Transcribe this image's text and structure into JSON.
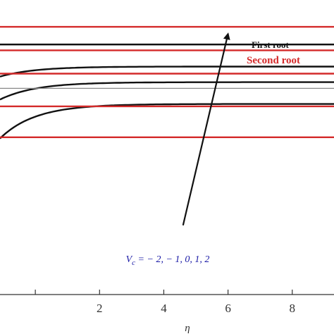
{
  "chart_data": {
    "type": "line",
    "xlabel": "η",
    "ylabel": "",
    "title": "",
    "xlim": [
      -1.1,
      9.3
    ],
    "ylim": [
      0,
      1
    ],
    "x_ticks": [
      2,
      4,
      6,
      8
    ],
    "grid": false,
    "legend_position": "top-right",
    "legend": [
      {
        "label": "First root",
        "color": "#111111"
      },
      {
        "label": "Second root",
        "color": "#d42a2a"
      }
    ],
    "annotation": {
      "text": "V_c = − 2, − 1, 0, 1, 2",
      "sub_main": "V",
      "sub_index": "c",
      "sub_rest": " = − 2, − 1, 0, 1, 2",
      "arrow_from": [
        4.6,
        0.235
      ],
      "arrow_to": [
        6.0,
        0.885
      ]
    },
    "series": [
      {
        "root": "First root",
        "color": "#111111",
        "profile": "flat",
        "y_end": 0.849
      },
      {
        "root": "First root",
        "color": "#111111",
        "profile": "rise",
        "y_start": 0.74,
        "y_end": 0.774
      },
      {
        "root": "First root",
        "color": "#111111",
        "profile": "rise",
        "y_start": 0.662,
        "y_end": 0.721
      },
      {
        "root": "First root",
        "color": "#111111",
        "profile": "rise",
        "y_start": 0.53,
        "y_end": 0.647
      },
      {
        "root": "Second root",
        "color": "#d42a2a",
        "profile": "flat",
        "y_end": 0.909
      },
      {
        "root": "Second root",
        "color": "#d42a2a",
        "profile": "flat",
        "y_end": 0.829
      },
      {
        "root": "Second root",
        "color": "#d42a2a",
        "profile": "flat",
        "y_end": 0.75
      },
      {
        "root": "Second root",
        "color": "#d42a2a",
        "profile": "flat",
        "y_end": 0.639
      },
      {
        "root": "Second root",
        "color": "#d42a2a",
        "profile": "flat",
        "y_end": 0.534
      },
      {
        "root": "",
        "color": "#888888",
        "profile": "flat",
        "y_end": 0.7
      }
    ]
  }
}
